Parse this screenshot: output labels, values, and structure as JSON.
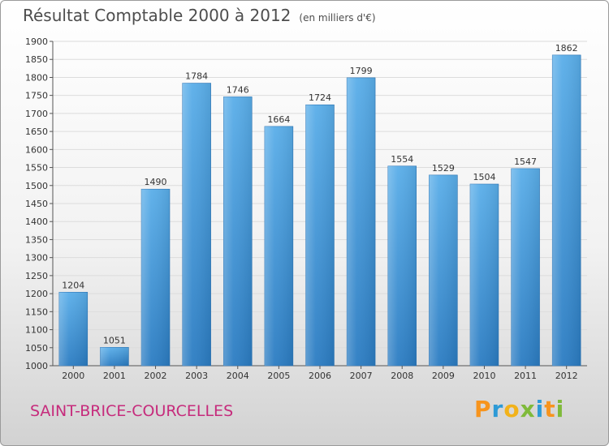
{
  "title": "Résultat Comptable 2000 à 2012",
  "unit": "(en milliers d'€)",
  "city": "SAINT-BRICE-COURCELLES",
  "logo": {
    "letters": [
      "P",
      "r",
      "o",
      "x",
      "i",
      "t",
      "i"
    ],
    "colors": [
      "#f7941d",
      "#2d9ad6",
      "#f2b21a",
      "#7fba3a",
      "#2d9ad6",
      "#f7941d",
      "#7fba3a"
    ]
  },
  "bar_color": "#3a8fd6",
  "chart_data": {
    "type": "bar",
    "title": "Résultat Comptable 2000 à 2012",
    "ylabel": "(en milliers d'€)",
    "categories": [
      "2000",
      "2001",
      "2002",
      "2003",
      "2004",
      "2005",
      "2006",
      "2007",
      "2008",
      "2009",
      "2010",
      "2011",
      "2012"
    ],
    "values": [
      1204,
      1051,
      1490,
      1784,
      1746,
      1664,
      1724,
      1799,
      1554,
      1529,
      1504,
      1547,
      1862
    ],
    "ylim": [
      1000,
      1900
    ],
    "yticks": [
      1000,
      1050,
      1100,
      1150,
      1200,
      1250,
      1300,
      1350,
      1400,
      1450,
      1500,
      1550,
      1600,
      1650,
      1700,
      1750,
      1800,
      1850,
      1900
    ],
    "grid": true,
    "data_labels": true
  }
}
